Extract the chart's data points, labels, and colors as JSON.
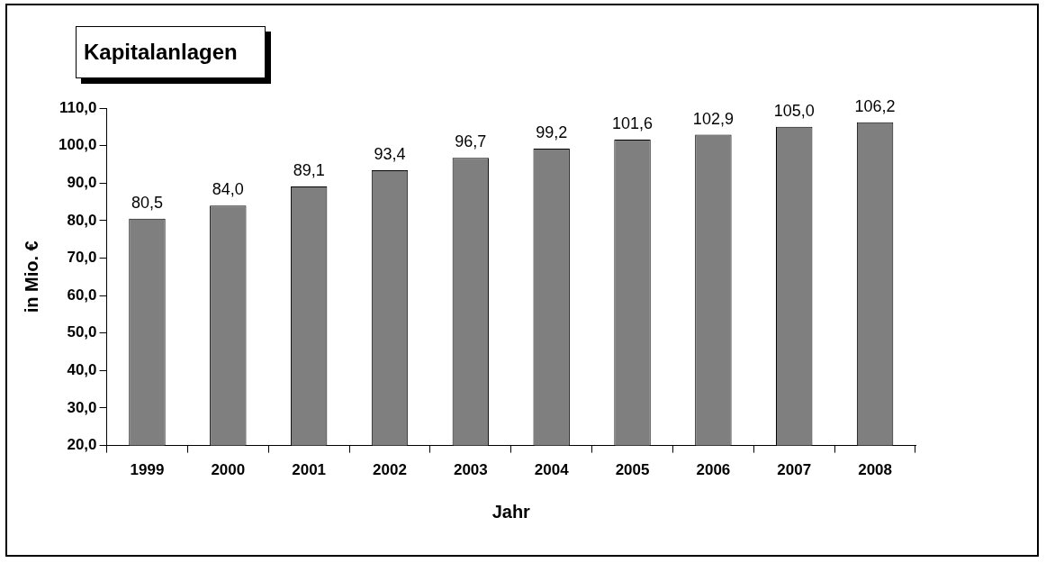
{
  "chart_data": {
    "type": "bar",
    "title": "Kapitalanlagen",
    "xlabel": "Jahr",
    "ylabel": "in Mio. €",
    "categories": [
      "1999",
      "2000",
      "2001",
      "2002",
      "2003",
      "2004",
      "2005",
      "2006",
      "2007",
      "2008"
    ],
    "values": [
      80.5,
      84.0,
      89.1,
      93.4,
      96.7,
      99.2,
      101.6,
      102.9,
      105.0,
      106.2
    ],
    "value_labels": [
      "80,5",
      "84,0",
      "89,1",
      "93,4",
      "96,7",
      "99,2",
      "101,6",
      "102,9",
      "105,0",
      "106,2"
    ],
    "color": "#7f7f7f",
    "ylim": [
      20,
      110
    ],
    "yticks": [
      {
        "value": 20,
        "label": "20,0"
      },
      {
        "value": 30,
        "label": "30,0"
      },
      {
        "value": 40,
        "label": "40,0"
      },
      {
        "value": 50,
        "label": "50,0"
      },
      {
        "value": 60,
        "label": "60,0"
      },
      {
        "value": 70,
        "label": "70,0"
      },
      {
        "value": 80,
        "label": "80,0"
      },
      {
        "value": 90,
        "label": "90,0"
      },
      {
        "value": 100,
        "label": "100,0"
      },
      {
        "value": 110,
        "label": "110,0"
      }
    ],
    "grid": false,
    "legend": false
  }
}
